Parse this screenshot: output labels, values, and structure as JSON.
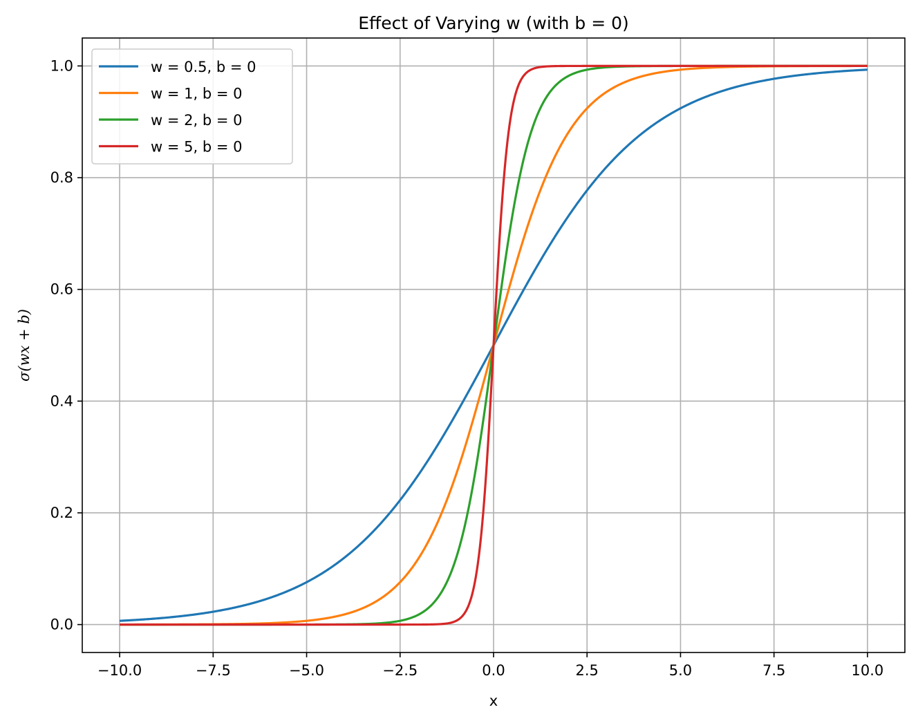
{
  "chart_data": {
    "type": "line",
    "title": "Effect of Varying w (with b = 0)",
    "xlabel": "x",
    "ylabel": "σ(wx + b)",
    "xlim": [
      -11.0,
      11.0
    ],
    "ylim": [
      -0.05,
      1.05
    ],
    "x_range": [
      -10,
      10
    ],
    "function": "sigmoid(w*x + b)",
    "x_ticks": [
      -10.0,
      -7.5,
      -5.0,
      -2.5,
      0.0,
      2.5,
      5.0,
      7.5,
      10.0
    ],
    "x_tick_labels": [
      "−10.0",
      "−7.5",
      "−5.0",
      "−2.5",
      "0.0",
      "2.5",
      "5.0",
      "7.5",
      "10.0"
    ],
    "y_ticks": [
      0.0,
      0.2,
      0.4,
      0.6,
      0.8,
      1.0
    ],
    "y_tick_labels": [
      "0.0",
      "0.2",
      "0.4",
      "0.6",
      "0.8",
      "1.0"
    ],
    "grid": true,
    "legend_position": "upper-left",
    "series": [
      {
        "name": "w = 0.5, b = 0",
        "w": 0.5,
        "b": 0,
        "color": "#1f77b4"
      },
      {
        "name": "w = 1, b = 0",
        "w": 1,
        "b": 0,
        "color": "#ff7f0e"
      },
      {
        "name": "w = 2, b = 0",
        "w": 2,
        "b": 0,
        "color": "#2ca02c"
      },
      {
        "name": "w = 5, b = 0",
        "w": 5,
        "b": 0,
        "color": "#d62728"
      }
    ]
  }
}
